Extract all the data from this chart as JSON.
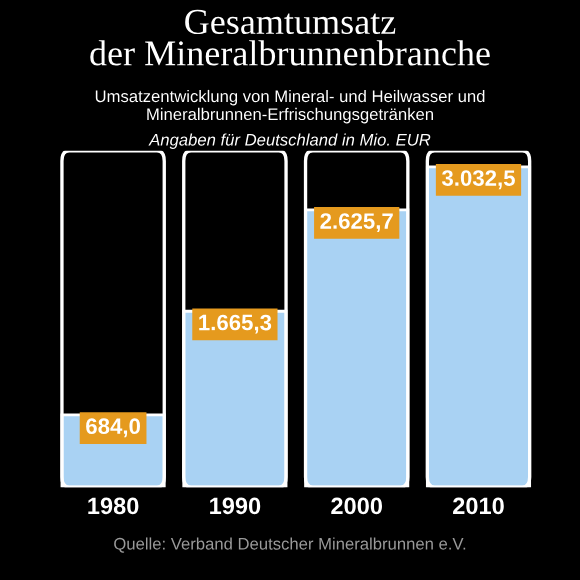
{
  "chart_data": {
    "type": "bar",
    "title": "Gesamtumsatz\nder Mineralbrunnenbranche",
    "subtitle": "Umsatzentwicklung von Mineral- und Heilwasser und\nMineralbrunnen-Erfrischungsgetränken",
    "annotations": [
      "Angaben für Deutschland in Mio. EUR",
      "Quelle: Verband Deutscher Mineralbrunnen e.V."
    ],
    "categories": [
      "1980",
      "1990",
      "2000",
      "2010"
    ],
    "values": [
      684.0,
      1665.3,
      2625.7,
      3032.5
    ],
    "value_labels": [
      "684,0",
      "1.665,3",
      "2.625,7",
      "3.032,5"
    ],
    "color": "#a9d2f3",
    "grid": false,
    "legend": false
  }
}
